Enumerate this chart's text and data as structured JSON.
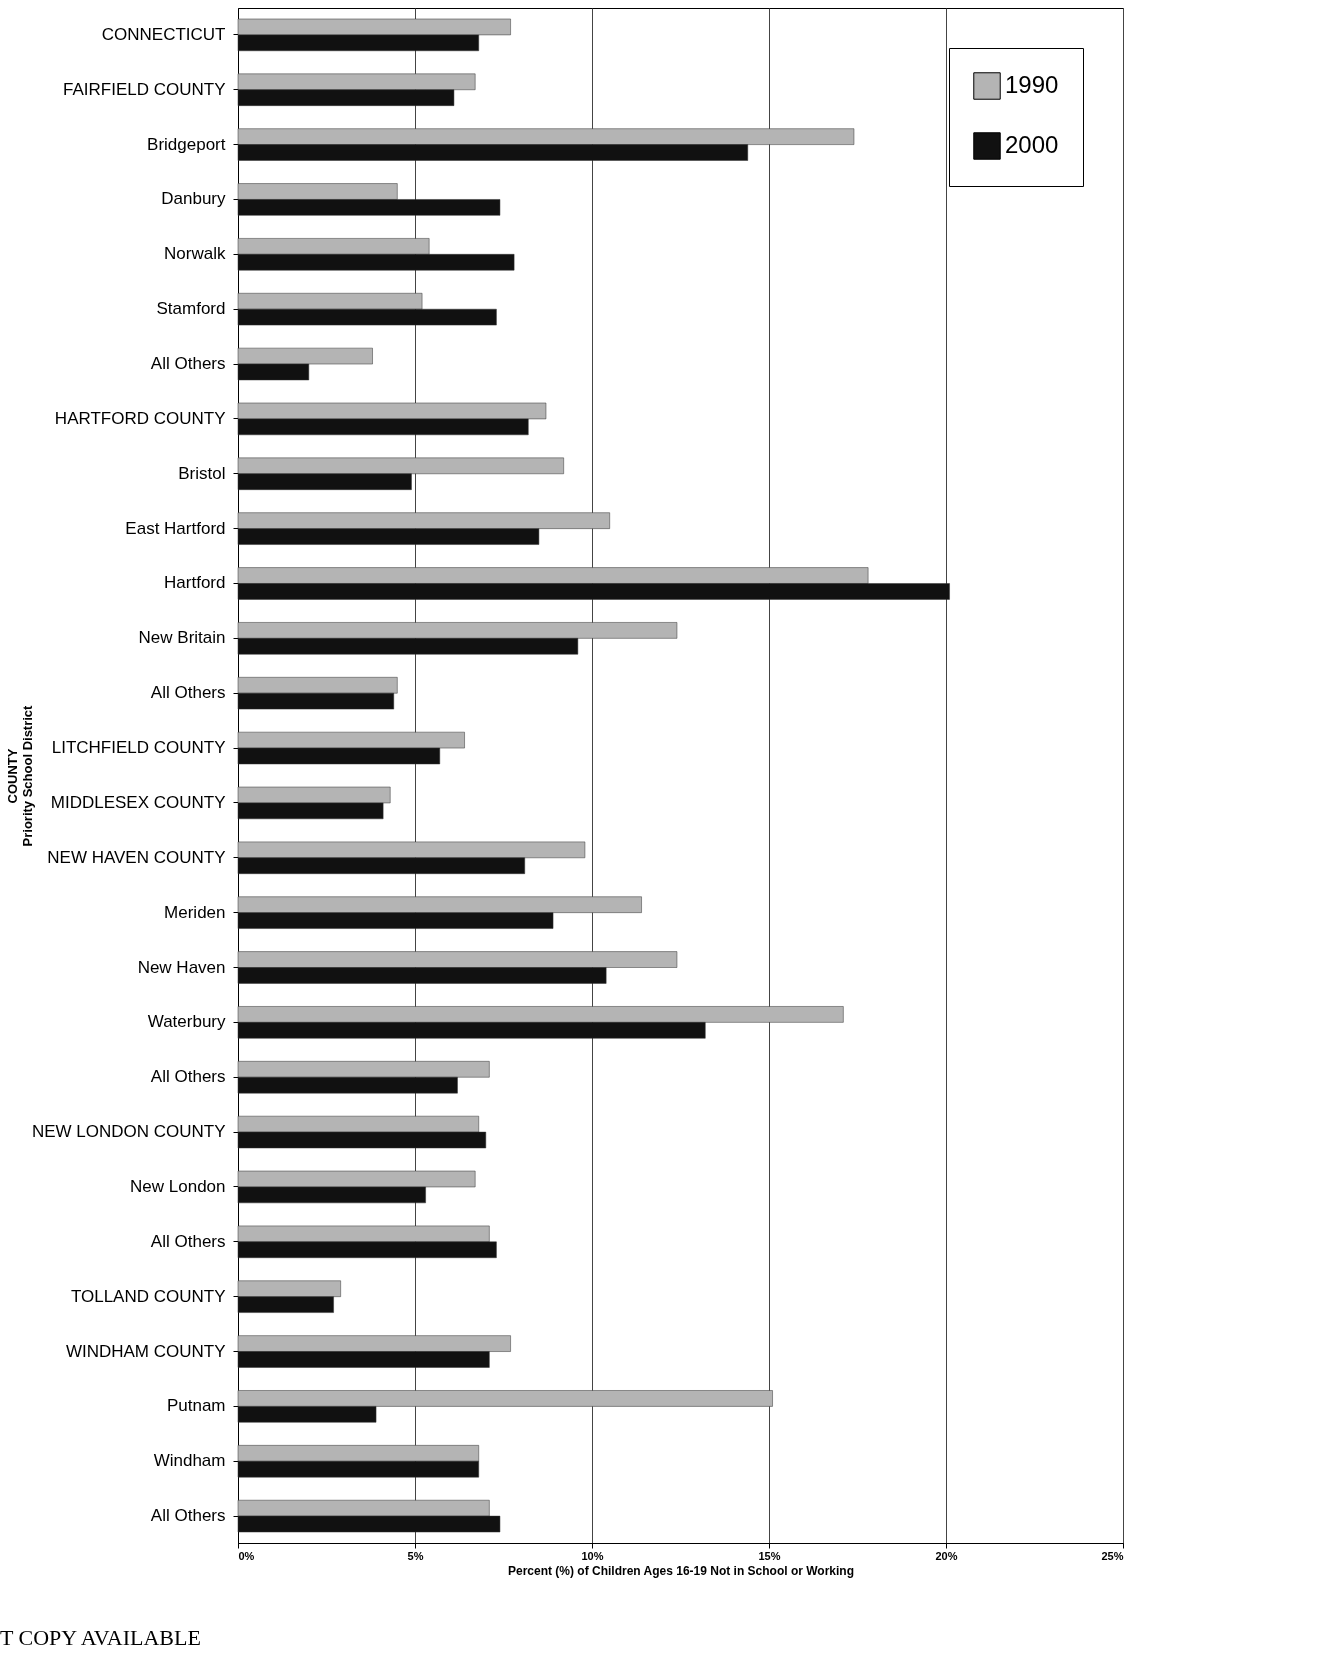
{
  "chart_data": {
    "type": "bar",
    "orientation": "horizontal",
    "xlabel": "Percent (%) of Children Ages 16-19 Not in School or Working",
    "ylabel": "COUNTY\nPriority School District",
    "categories": [
      "CONNECTICUT",
      "FAIRFIELD COUNTY",
      "Bridgeport",
      "Danbury",
      "Norwalk",
      "Stamford",
      "All Others",
      "HARTFORD COUNTY",
      "Bristol",
      "East Hartford",
      "Hartford",
      "New Britain",
      "All Others",
      "LITCHFIELD COUNTY",
      "MIDDLESEX COUNTY",
      "NEW HAVEN COUNTY",
      "Meriden",
      "New Haven",
      "Waterbury",
      "All Others",
      "NEW LONDON COUNTY",
      "New London",
      "All Others",
      "TOLLAND COUNTY",
      "WINDHAM COUNTY",
      "Putnam",
      "Windham",
      "All Others"
    ],
    "series": [
      {
        "name": "1990",
        "color": "#b4b4b4",
        "values": [
          7.7,
          6.7,
          17.4,
          4.5,
          5.4,
          5.2,
          3.8,
          8.7,
          9.2,
          10.5,
          17.8,
          12.4,
          4.5,
          6.4,
          4.3,
          9.8,
          11.4,
          12.4,
          17.1,
          7.1,
          6.8,
          6.7,
          7.1,
          2.9,
          7.7,
          15.1,
          6.8,
          7.1
        ]
      },
      {
        "name": "2000",
        "color": "#111111",
        "values": [
          6.8,
          6.1,
          14.4,
          7.4,
          7.8,
          7.3,
          2.0,
          8.2,
          4.9,
          8.5,
          20.1,
          9.6,
          4.4,
          5.7,
          4.1,
          8.1,
          8.9,
          10.4,
          13.2,
          6.2,
          7.0,
          5.3,
          7.3,
          2.7,
          7.1,
          3.9,
          6.8,
          7.4
        ]
      }
    ],
    "xlim": [
      0,
      25
    ],
    "xticks": [
      {
        "value": 0,
        "label": "0%"
      },
      {
        "value": 5,
        "label": "5%"
      },
      {
        "value": 10,
        "label": "10%"
      },
      {
        "value": 15,
        "label": "15%"
      },
      {
        "value": 20,
        "label": "20%"
      },
      {
        "value": 25,
        "label": "25%"
      }
    ],
    "grid": "x",
    "legend": "top right",
    "annotations": [
      "T COPY AVAILABLE"
    ]
  }
}
